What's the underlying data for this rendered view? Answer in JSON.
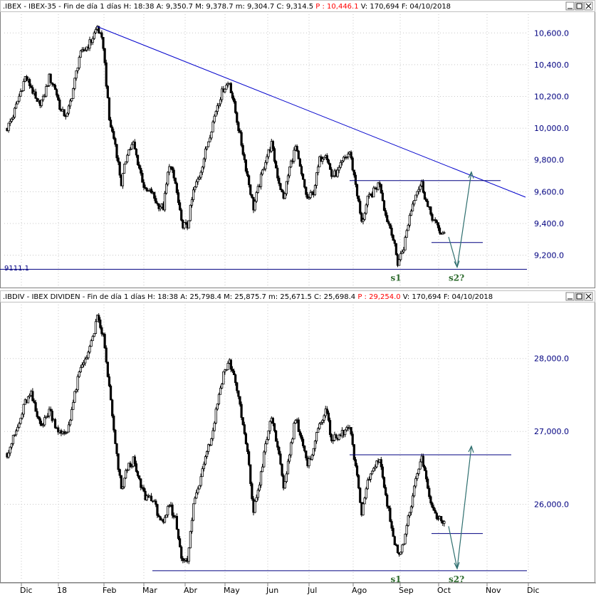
{
  "colors": {
    "candle": "#000000",
    "trendline": "#0000cc",
    "level": "#000080",
    "arrow": "#2f6f6f",
    "annotation": "#2e6b2e",
    "axis_label": "#000080"
  },
  "panes": [
    {
      "symbol": ".IBEX",
      "name": "IBEX-35",
      "period": "Fin de día 1 días",
      "h": "18:38",
      "a": "9,350.7",
      "m": "9,378.7",
      "mlow": "9,304.7",
      "c": "9,314.5",
      "p": "10,446.1",
      "v": "170,694",
      "f": "04/10/2018",
      "level_label": "9111.1"
    },
    {
      "symbol": ".IBDIV",
      "name": "IBEX DIVIDEN",
      "period": "Fin de día 1 días",
      "h": "18:38",
      "a": "25,798.4",
      "m": "25,875.7",
      "mlow": "25,671.5",
      "c": "25,698.4",
      "p": "29,254.0",
      "v": "170,694",
      "f": "04/10/2018",
      "level_label": ""
    }
  ],
  "chart_data": [
    {
      "type": "candlestick",
      "title": ".IBEX - IBEX-35",
      "y_ticks": [
        "10,600.0",
        "10,400.0",
        "10,200.0",
        "10,000.0",
        "9,800.0",
        "9,600.0",
        "9,400.0",
        "9,200.0"
      ],
      "ylim": [
        9050,
        10700
      ],
      "x_labels": [
        "Dic",
        "18",
        "Feb",
        "Mar",
        "Abr",
        "May",
        "Jun",
        "Jul",
        "Ago",
        "Sep",
        "Oct",
        "Nov",
        "Dic"
      ],
      "closes": [
        10000,
        10080,
        10200,
        10320,
        10260,
        10150,
        10180,
        10320,
        10250,
        10100,
        10080,
        10250,
        10450,
        10500,
        10550,
        10640,
        10520,
        10050,
        9900,
        9650,
        9850,
        9900,
        9750,
        9600,
        9600,
        9520,
        9500,
        9780,
        9650,
        9400,
        9380,
        9600,
        9700,
        9850,
        10000,
        10150,
        10250,
        10290,
        10100,
        9900,
        9700,
        9500,
        9650,
        9800,
        9900,
        9700,
        9550,
        9750,
        9880,
        9700,
        9550,
        9600,
        9800,
        9850,
        9700,
        9720,
        9800,
        9850,
        9650,
        9400,
        9550,
        9600,
        9660,
        9450,
        9350,
        9150,
        9250,
        9450,
        9600,
        9650,
        9500,
        9420,
        9350,
        9315
      ],
      "annotations": [
        {
          "text": "s1",
          "date_index": 65
        },
        {
          "text": "s2?",
          "date_index": 73
        }
      ],
      "support_level": 9111.1,
      "resistance_level": 9670,
      "stop_level": 9280,
      "trendline": [
        10640,
        9630
      ]
    },
    {
      "type": "candlestick",
      "title": ".IBDIV - IBEX DIVIDEN",
      "y_ticks": [
        "28,000.0",
        "27,000.0",
        "26,000.0"
      ],
      "ylim": [
        25050,
        28700
      ],
      "x_labels": [
        "Dic",
        "18",
        "Feb",
        "Mar",
        "Abr",
        "May",
        "Jun",
        "Jul",
        "Ago",
        "Sep",
        "Oct",
        "Nov",
        "Dic"
      ],
      "closes": [
        26700,
        26900,
        27100,
        27400,
        27500,
        27200,
        27100,
        27300,
        27100,
        26950,
        27000,
        27400,
        27800,
        28000,
        28200,
        28550,
        28300,
        27600,
        26800,
        26200,
        26500,
        26600,
        26300,
        26100,
        26100,
        25900,
        25700,
        26000,
        25800,
        25300,
        25200,
        26000,
        26300,
        26700,
        26900,
        27400,
        27800,
        27950,
        27700,
        27200,
        26700,
        25900,
        26300,
        26800,
        27200,
        26800,
        26200,
        26700,
        27200,
        26900,
        26500,
        26800,
        27100,
        27300,
        26900,
        26900,
        27000,
        27050,
        26500,
        25900,
        26300,
        26500,
        26650,
        26100,
        25700,
        25300,
        25500,
        25900,
        26300,
        26650,
        26200,
        25900,
        25800,
        25700
      ],
      "annotations": [
        {
          "text": "s1",
          "date_index": 65
        },
        {
          "text": "s2?",
          "date_index": 73
        }
      ],
      "support_level": 25090,
      "resistance_level": 26680,
      "stop_level": 25600
    }
  ]
}
